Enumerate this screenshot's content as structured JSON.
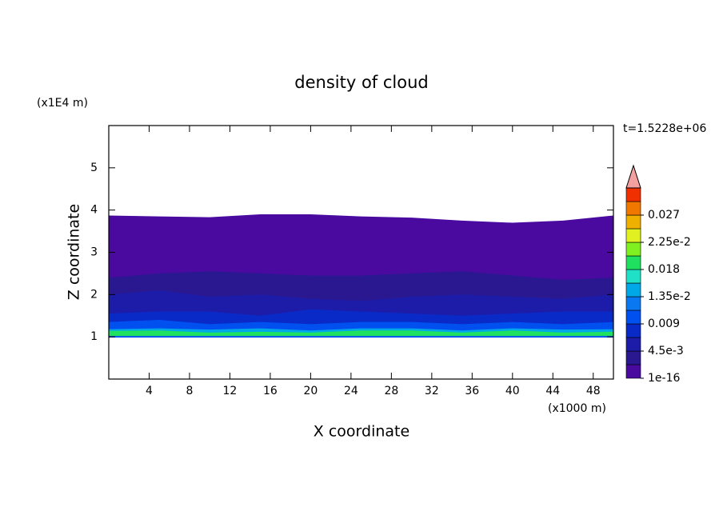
{
  "chart_data": {
    "type": "contour",
    "title": "density of cloud",
    "x_label": "X coordinate",
    "y_label": "Z coordinate",
    "x_unit": "(x1000 m)",
    "y_unit": "(x1E4 m)",
    "annotation": "t=1.5228e+06",
    "xlim": [
      0,
      50
    ],
    "xticks": [
      4,
      8,
      12,
      16,
      20,
      24,
      28,
      32,
      36,
      40,
      44,
      48
    ],
    "ylim": [
      0,
      6
    ],
    "yticks": [
      1,
      2,
      3,
      4,
      5
    ],
    "x": [
      0,
      5,
      10,
      15,
      20,
      25,
      30,
      35,
      40,
      45,
      50
    ],
    "base": 1,
    "layers": [
      {
        "level": 0,
        "z_top": [
          3.87,
          3.85,
          3.83,
          3.9,
          3.9,
          3.85,
          3.82,
          3.75,
          3.7,
          3.75,
          3.87
        ]
      },
      {
        "level": 1,
        "z_top": [
          2.4,
          2.5,
          2.55,
          2.5,
          2.45,
          2.45,
          2.5,
          2.55,
          2.45,
          2.35,
          2.4
        ]
      },
      {
        "level": 2,
        "z_top": [
          2.0,
          2.1,
          1.95,
          2.0,
          1.9,
          1.85,
          1.95,
          2.0,
          1.95,
          1.9,
          2.0
        ]
      },
      {
        "level": 3,
        "z_top": [
          1.55,
          1.6,
          1.6,
          1.5,
          1.65,
          1.6,
          1.55,
          1.5,
          1.55,
          1.6,
          1.6
        ]
      },
      {
        "level": 4,
        "z_top": [
          1.35,
          1.4,
          1.3,
          1.35,
          1.3,
          1.35,
          1.35,
          1.3,
          1.35,
          1.3,
          1.35
        ]
      },
      {
        "level": 6,
        "z_top": [
          1.18,
          1.2,
          1.17,
          1.2,
          1.15,
          1.2,
          1.2,
          1.15,
          1.2,
          1.17,
          1.18
        ]
      },
      {
        "level": 8,
        "z_top": [
          1.14,
          1.15,
          1.1,
          1.12,
          1.1,
          1.15,
          1.15,
          1.1,
          1.15,
          1.1,
          1.12
        ]
      }
    ],
    "colors": [
      "#4a0aa0",
      "#2a1890",
      "#1c1ca8",
      "#0a2ac8",
      "#0050f0",
      "#0a78f0",
      "#00a8e8",
      "#20e0c8",
      "#20e060",
      "#80f020",
      "#e0f020",
      "#f0b000",
      "#f07800",
      "#f03000"
    ],
    "extend_color": "#f4a0a0",
    "clim": [
      0,
      0.0315
    ],
    "cticks": [
      1e-16,
      {
        "value": 0.0045,
        "label": "4.5e-3"
      },
      0.009,
      {
        "value": 0.0135,
        "label": "1.35e-2"
      },
      0.018,
      {
        "value": 0.0225,
        "label": "2.25e-2"
      },
      0.027
    ]
  }
}
